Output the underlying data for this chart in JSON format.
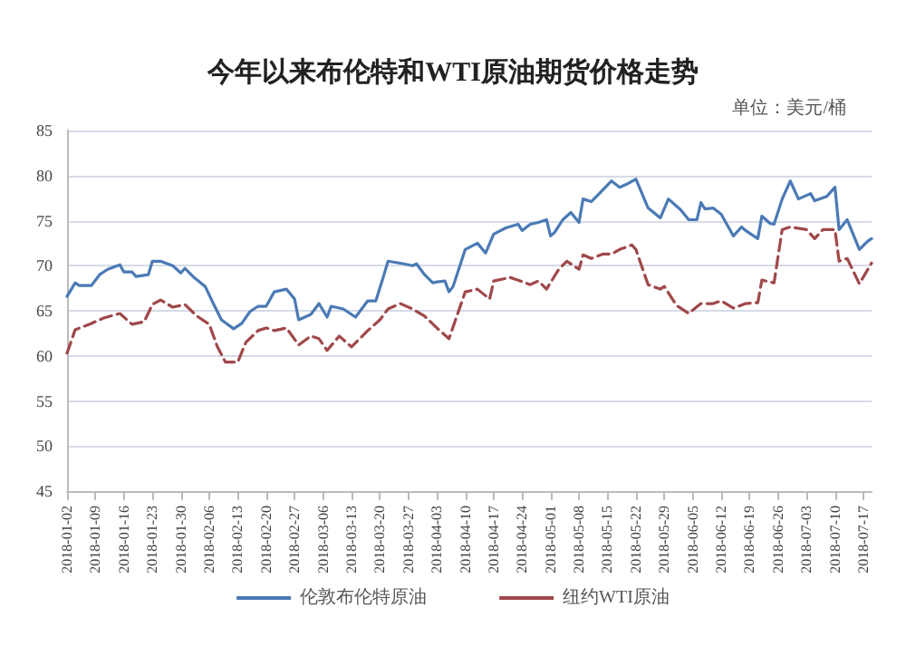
{
  "chart_data": {
    "type": "line",
    "title": "今年以来布伦特和WTI原油期货价格走势",
    "annotations": [
      "单位：美元/桶"
    ],
    "series": [
      {
        "name": "伦敦布伦特原油",
        "color": "#4a7ab5",
        "line_style": "solid",
        "x": [
          "2018-01-02",
          "2018-01-04",
          "2018-01-05",
          "2018-01-08",
          "2018-01-10",
          "2018-01-12",
          "2018-01-15",
          "2018-01-16",
          "2018-01-18",
          "2018-01-19",
          "2018-01-22",
          "2018-01-23",
          "2018-01-25",
          "2018-01-28",
          "2018-01-30",
          "2018-01-31",
          "2018-02-02",
          "2018-02-05",
          "2018-02-07",
          "2018-02-09",
          "2018-02-12",
          "2018-02-14",
          "2018-02-16",
          "2018-02-18",
          "2018-02-20",
          "2018-02-22",
          "2018-02-25",
          "2018-02-27",
          "2018-02-28",
          "2018-03-03",
          "2018-03-05",
          "2018-03-07",
          "2018-03-08",
          "2018-03-11",
          "2018-03-14",
          "2018-03-17",
          "2018-03-19",
          "2018-03-21",
          "2018-03-22",
          "2018-03-26",
          "2018-03-28",
          "2018-03-29",
          "2018-03-31",
          "2018-04-02",
          "2018-04-03",
          "2018-04-05",
          "2018-04-06",
          "2018-04-07",
          "2018-04-10",
          "2018-04-13",
          "2018-04-15",
          "2018-04-17",
          "2018-04-20",
          "2018-04-23",
          "2018-04-24",
          "2018-04-26",
          "2018-04-28",
          "2018-04-30",
          "2018-05-01",
          "2018-05-02",
          "2018-05-04",
          "2018-05-06",
          "2018-05-08",
          "2018-05-09",
          "2018-05-11",
          "2018-05-13",
          "2018-05-16",
          "2018-05-18",
          "2018-05-20",
          "2018-05-22",
          "2018-05-25",
          "2018-05-28",
          "2018-05-30",
          "2018-06-02",
          "2018-06-04",
          "2018-06-06",
          "2018-06-07",
          "2018-06-08",
          "2018-06-10",
          "2018-06-12",
          "2018-06-15",
          "2018-06-17",
          "2018-06-18",
          "2018-06-21",
          "2018-06-22",
          "2018-06-24",
          "2018-06-25",
          "2018-06-27",
          "2018-06-29",
          "2018-07-01",
          "2018-07-04",
          "2018-07-05",
          "2018-07-08",
          "2018-07-10",
          "2018-07-11",
          "2018-07-13",
          "2018-07-16",
          "2018-07-18",
          "2018-07-19"
        ],
        "values": [
          66.6,
          68.1,
          67.8,
          67.8,
          69.0,
          69.6,
          70.1,
          69.3,
          69.3,
          68.8,
          69.0,
          70.5,
          70.5,
          70.0,
          69.2,
          69.7,
          68.8,
          67.7,
          65.8,
          64.0,
          63.0,
          63.6,
          64.9,
          65.5,
          65.5,
          67.1,
          67.4,
          66.3,
          64.0,
          64.6,
          65.8,
          64.3,
          65.5,
          65.2,
          64.3,
          66.1,
          66.1,
          69.0,
          70.5,
          70.2,
          70.0,
          70.2,
          69.0,
          68.1,
          68.2,
          68.3,
          67.1,
          67.7,
          71.8,
          72.5,
          71.4,
          73.5,
          74.2,
          74.6,
          73.9,
          74.6,
          74.8,
          75.1,
          73.3,
          73.7,
          75.1,
          75.9,
          74.8,
          77.4,
          77.1,
          78.0,
          79.4,
          78.7,
          79.1,
          79.6,
          76.4,
          75.3,
          77.4,
          76.2,
          75.1,
          75.1,
          77.0,
          76.3,
          76.4,
          75.7,
          73.3,
          74.3,
          73.9,
          73.0,
          75.5,
          74.7,
          74.6,
          77.4,
          79.4,
          77.4,
          78.0,
          77.2,
          77.7,
          78.7,
          74.0,
          75.1,
          71.8,
          72.7,
          73.0
        ]
      },
      {
        "name": "纽约WTI原油",
        "color": "#a0484a",
        "line_style": "dashed",
        "x": [
          "2018-01-02",
          "2018-01-04",
          "2018-01-08",
          "2018-01-11",
          "2018-01-15",
          "2018-01-18",
          "2018-01-21",
          "2018-01-23",
          "2018-01-25",
          "2018-01-28",
          "2018-01-31",
          "2018-02-03",
          "2018-02-06",
          "2018-02-08",
          "2018-02-10",
          "2018-02-13",
          "2018-02-15",
          "2018-02-18",
          "2018-02-20",
          "2018-02-22",
          "2018-02-25",
          "2018-02-28",
          "2018-03-03",
          "2018-03-05",
          "2018-03-07",
          "2018-03-10",
          "2018-03-13",
          "2018-03-17",
          "2018-03-20",
          "2018-03-22",
          "2018-03-25",
          "2018-03-28",
          "2018-03-31",
          "2018-04-03",
          "2018-04-06",
          "2018-04-08",
          "2018-04-10",
          "2018-04-13",
          "2018-04-16",
          "2018-04-17",
          "2018-04-21",
          "2018-04-23",
          "2018-04-26",
          "2018-04-28",
          "2018-04-30",
          "2018-05-03",
          "2018-05-05",
          "2018-05-08",
          "2018-05-09",
          "2018-05-11",
          "2018-05-14",
          "2018-05-16",
          "2018-05-18",
          "2018-05-21",
          "2018-05-22",
          "2018-05-25",
          "2018-05-28",
          "2018-05-29",
          "2018-06-01",
          "2018-06-04",
          "2018-06-07",
          "2018-06-10",
          "2018-06-12",
          "2018-06-15",
          "2018-06-18",
          "2018-06-21",
          "2018-06-22",
          "2018-06-25",
          "2018-06-27",
          "2018-06-29",
          "2018-07-03",
          "2018-07-05",
          "2018-07-07",
          "2018-07-10",
          "2018-07-11",
          "2018-07-13",
          "2018-07-16",
          "2018-07-19"
        ],
        "values": [
          60.3,
          62.9,
          63.6,
          64.2,
          64.7,
          63.5,
          63.8,
          65.7,
          66.2,
          65.4,
          65.7,
          64.4,
          63.5,
          61.0,
          59.3,
          59.3,
          61.5,
          62.8,
          63.1,
          62.8,
          63.1,
          61.2,
          62.2,
          61.9,
          60.6,
          62.2,
          61.0,
          62.8,
          64.0,
          65.2,
          65.8,
          65.2,
          64.4,
          63.1,
          61.9,
          64.5,
          67.1,
          67.4,
          66.3,
          68.3,
          68.7,
          68.4,
          67.9,
          68.3,
          67.4,
          69.6,
          70.5,
          69.6,
          71.2,
          70.8,
          71.3,
          71.3,
          71.8,
          72.3,
          71.8,
          67.9,
          67.4,
          67.7,
          65.6,
          64.7,
          65.8,
          65.8,
          66.1,
          65.3,
          65.8,
          65.9,
          68.4,
          68.1,
          74.0,
          74.3,
          74.0,
          73.0,
          74.0,
          74.0,
          70.5,
          70.8,
          68.0,
          70.3
        ]
      }
    ],
    "xlim": [
      "2018-01-02",
      "2018-07-19"
    ],
    "xticks": [
      "2018-01-02",
      "2018-01-09",
      "2018-01-16",
      "2018-01-23",
      "2018-01-30",
      "2018-02-06",
      "2018-02-13",
      "2018-02-20",
      "2018-02-27",
      "2018-03-06",
      "2018-03-13",
      "2018-03-20",
      "2018-03-27",
      "2018-04-03",
      "2018-04-10",
      "2018-04-17",
      "2018-04-24",
      "2018-05-01",
      "2018-05-08",
      "2018-05-15",
      "2018-05-22",
      "2018-05-29",
      "2018-06-05",
      "2018-06-12",
      "2018-06-19",
      "2018-06-26",
      "2018-07-03",
      "2018-07-10",
      "2018-07-17"
    ],
    "ylim": [
      45,
      85
    ],
    "yticks": [
      45,
      50,
      55,
      60,
      65,
      70,
      75,
      80,
      85
    ],
    "grid": "y",
    "legend": "bottom",
    "marker": "none"
  }
}
